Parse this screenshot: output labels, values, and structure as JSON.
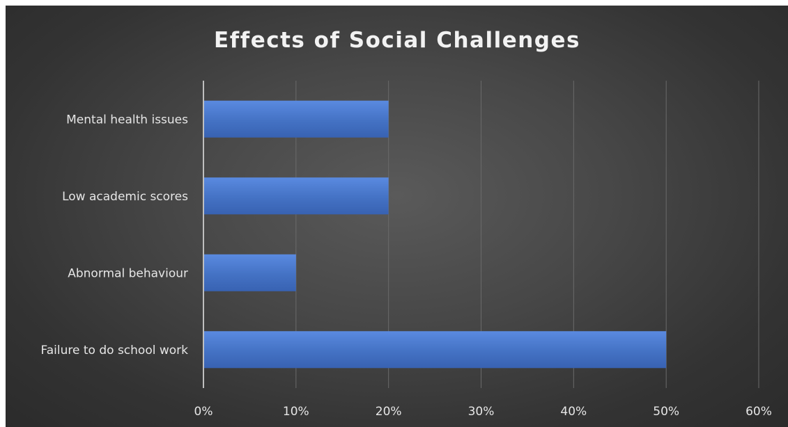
{
  "chart_data": {
    "type": "bar",
    "orientation": "horizontal",
    "title": "Effects of Social Challenges",
    "categories": [
      "Mental health issues",
      "Low academic scores",
      "Abnormal behaviour",
      "Failure to do school work"
    ],
    "values": [
      0.2,
      0.2,
      0.1,
      0.5
    ],
    "xlim": [
      0,
      0.6
    ],
    "xticks": [
      0,
      0.1,
      0.2,
      0.3,
      0.4,
      0.5,
      0.6
    ],
    "xtick_labels": [
      "0%",
      "10%",
      "20%",
      "30%",
      "40%",
      "50%",
      "60%"
    ],
    "xlabel": "",
    "ylabel": "",
    "grid": true,
    "legend": "none",
    "bar_color": "#4472c4",
    "background": "#404040"
  }
}
